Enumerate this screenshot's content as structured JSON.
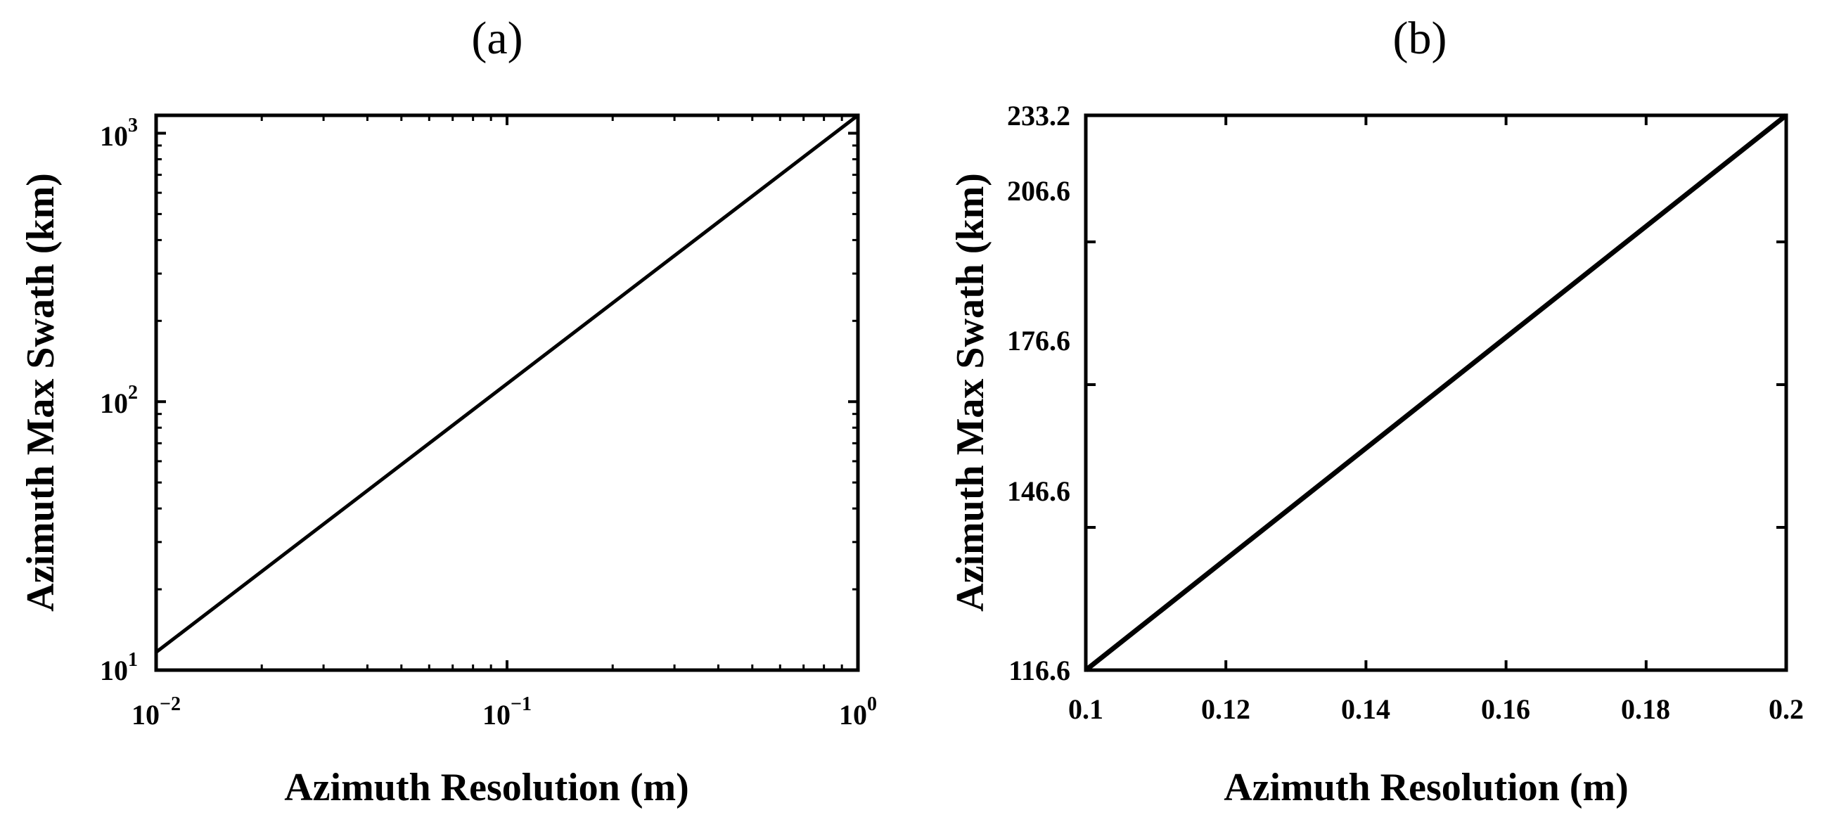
{
  "chart_data": [
    {
      "type": "line",
      "title": "(a)",
      "xlabel": "Azimuth Resolution (m)",
      "ylabel": "Azimuth Max Swath (km)",
      "xscale": "log",
      "yscale": "log",
      "xlim": [
        0.01,
        1
      ],
      "ylim": [
        10,
        1166
      ],
      "x_ticks": [
        {
          "base": "10",
          "exp": "−2"
        },
        {
          "base": "10",
          "exp": "−1"
        },
        {
          "base": "10",
          "exp": "0"
        }
      ],
      "y_ticks": [
        {
          "base": "10",
          "exp": "1"
        },
        {
          "base": "10",
          "exp": "2"
        },
        {
          "base": "10",
          "exp": "3"
        }
      ],
      "series": [
        {
          "x": [
            0.01,
            1
          ],
          "y": [
            11.66,
            1166
          ]
        }
      ],
      "grid": false,
      "line_color": "#000000"
    },
    {
      "type": "line",
      "title": "(b)",
      "xlabel": "Azimuth Resolution (m)",
      "ylabel": "Azimuth Max Swath (km)",
      "xscale": "linear",
      "yscale": "linear",
      "xlim": [
        0.1,
        0.2
      ],
      "ylim": [
        116.6,
        233.2
      ],
      "x_ticks": [
        "0.1",
        "0.12",
        "0.14",
        "0.16",
        "0.18",
        "0.2"
      ],
      "y_ticks": [
        "116.6",
        "146.6",
        "176.6",
        "206.6",
        "233.2"
      ],
      "series": [
        {
          "x": [
            0.1,
            0.2
          ],
          "y": [
            116.6,
            233.2
          ]
        }
      ],
      "grid": false,
      "line_color": "#000000"
    }
  ]
}
